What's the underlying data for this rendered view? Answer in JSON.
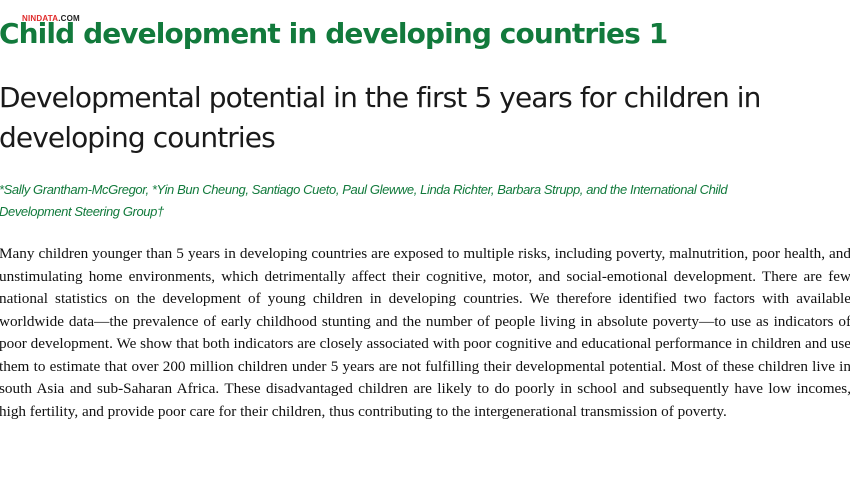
{
  "watermark": {
    "part1": "NINDATA",
    "part2": ".COM"
  },
  "series_title": "Child development in developing countries 1",
  "paper_title": "Developmental potential in the first 5 years for children in developing countries",
  "authors": "*Sally Grantham-McGregor, *Yin Bun Cheung, Santiago Cueto, Paul Glewwe, Linda Richter, Barbara Strupp, and the International Child Development Steering Group†",
  "abstract": "Many children younger than 5 years in developing countries are exposed to multiple risks, including poverty, malnutrition, poor health, and unstimulating home environments, which detrimentally affect their cognitive, motor, and social-emotional development. There are few national statistics on the development of young children in developing countries. We therefore identified two factors with available worldwide data—the prevalence of early childhood stunting and the number of people living in absolute poverty—to use as indicators of poor development. We show that both indicators are closely associated with poor cognitive and educational performance in children and use them to estimate that over 200 million children under 5 years are not fulfilling their developmental potential. Most of these children live in south Asia and sub-Saharan Africa. These disadvantaged children are likely to do poorly in school and subsequently have low incomes, high fertility, and provide poor care for their children, thus contributing to the intergenerational transmission of poverty.",
  "colors": {
    "accent_green": "#127a3c",
    "title_text": "#1a1a1a",
    "body_text": "#111111",
    "watermark_red": "#e02a2a"
  }
}
